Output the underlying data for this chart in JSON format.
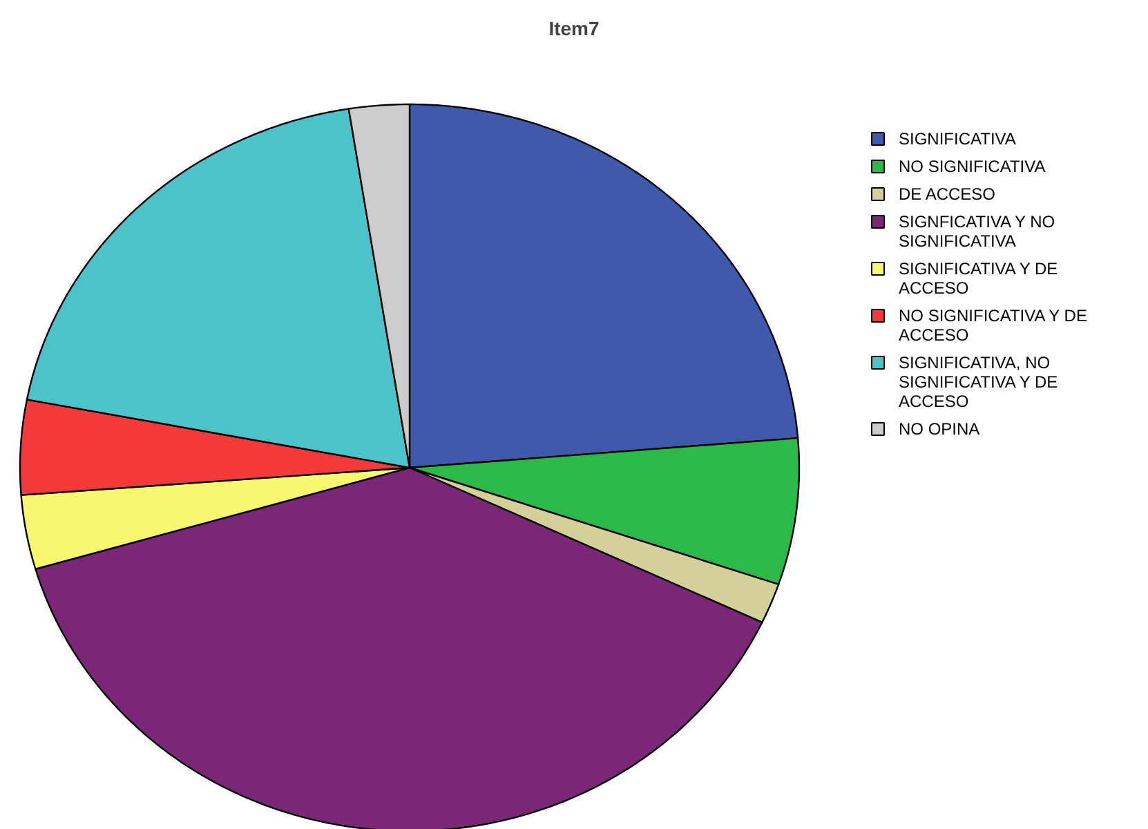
{
  "chart_data": {
    "type": "pie",
    "title": "Item7",
    "categories": [
      "SIGNIFICATIVA",
      "NO SIGNIFICATIVA",
      "DE ACCESO",
      "SIGNFICATIVA Y NO SIGNIFICATIVA",
      "SIGNIFICATIVA Y DE ACCESO",
      "NO SIGNIFICATIVA Y DE ACCESO",
      "SIGNIFICATIVA, NO SIGNIFICATIVA Y DE ACCESO",
      "NO OPINA"
    ],
    "values": [
      23.7,
      6.5,
      1.8,
      38.5,
      3.3,
      4.2,
      19.5,
      2.5
    ],
    "colors": [
      "#3f5aad",
      "#2db84a",
      "#d4d09a",
      "#7a2778",
      "#f9f770",
      "#f23a3a",
      "#4bc3c8",
      "#cccccc"
    ],
    "legend": "right"
  }
}
